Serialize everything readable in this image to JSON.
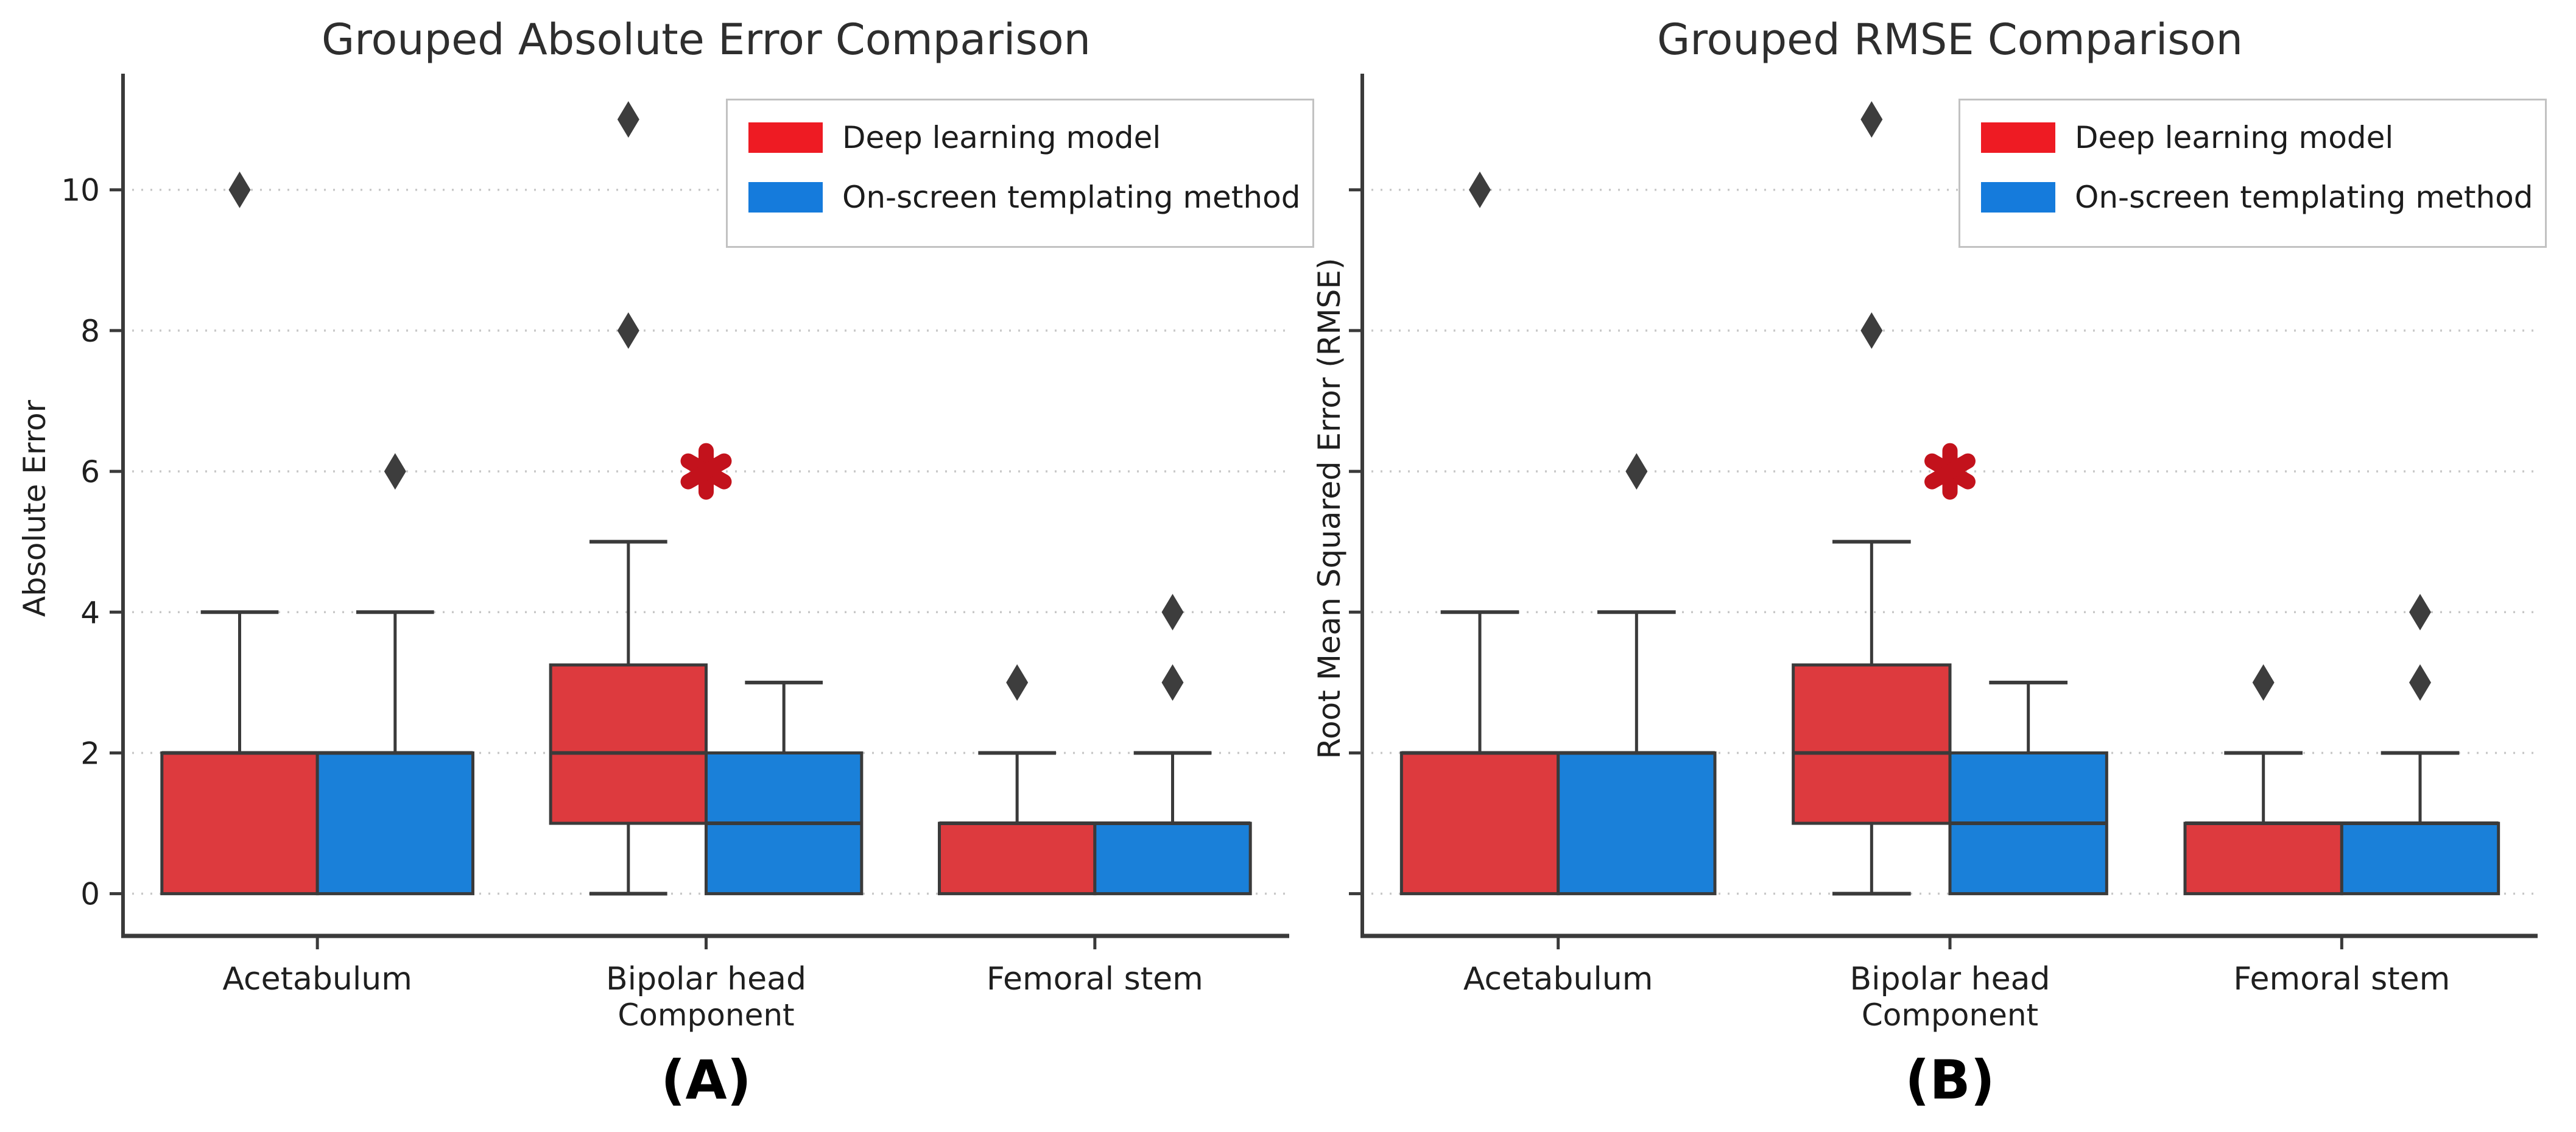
{
  "figure": {
    "background": "#ffffff",
    "text_color": "#1f1f1f",
    "spine_color": "#3a3a3a",
    "grid_color": "#c8c8c8",
    "outlier_color": "#3d3d3d"
  },
  "legend": {
    "items": [
      {
        "label": "Deep learning model",
        "color": "#ee1b23"
      },
      {
        "label": "On-screen templating method",
        "color": "#157bdc"
      }
    ],
    "position": "upper right"
  },
  "chart_data": [
    {
      "type": "boxplot",
      "title": "Grouped Absolute Error Comparison",
      "xlabel": "Component",
      "ylabel": "Absolute Error",
      "caption": "(A)",
      "categories": [
        "Acetabulum",
        "Bipolar head",
        "Femoral stem"
      ],
      "yticks": [
        0,
        2,
        4,
        6,
        8,
        10
      ],
      "ytick_labels_visible": true,
      "ylim": [
        -0.6,
        11.65
      ],
      "grid": "horizontal-dotted",
      "legend_position": "upper right",
      "series": [
        {
          "name": "Deep learning model",
          "box_fill": "#dd3a3e",
          "boxes": [
            {
              "category": "Acetabulum",
              "whisker_low": 0,
              "q1": 0,
              "median": 2,
              "q3": 2,
              "whisker_high": 4,
              "outliers": [
                10
              ]
            },
            {
              "category": "Bipolar head",
              "whisker_low": 0,
              "q1": 1,
              "median": 2,
              "q3": 3.25,
              "whisker_high": 5,
              "outliers": [
                8,
                11
              ]
            },
            {
              "category": "Femoral stem",
              "whisker_low": 0,
              "q1": 0,
              "median": 1,
              "q3": 1,
              "whisker_high": 2,
              "outliers": [
                3
              ]
            }
          ]
        },
        {
          "name": "On-screen templating method",
          "box_fill": "#1a80d9",
          "boxes": [
            {
              "category": "Acetabulum",
              "whisker_low": 0,
              "q1": 0,
              "median": 2,
              "q3": 2,
              "whisker_high": 4,
              "outliers": [
                6
              ]
            },
            {
              "category": "Bipolar head",
              "whisker_low": 0,
              "q1": 0,
              "median": 1,
              "q3": 2,
              "whisker_high": 3,
              "outliers": []
            },
            {
              "category": "Femoral stem",
              "whisker_low": 0,
              "q1": 0,
              "median": 1,
              "q3": 1,
              "whisker_high": 2,
              "outliers": [
                3,
                4
              ]
            }
          ]
        }
      ],
      "significance_marker": {
        "symbol": "*",
        "category": "Bipolar head",
        "y": 6,
        "color": "#c3121c"
      }
    },
    {
      "type": "boxplot",
      "title": "Grouped RMSE Comparison",
      "xlabel": "Component",
      "ylabel": "Root Mean Squared Error (RMSE)",
      "caption": "(B)",
      "categories": [
        "Acetabulum",
        "Bipolar head",
        "Femoral stem"
      ],
      "yticks": [
        0,
        2,
        4,
        6,
        8,
        10
      ],
      "ytick_labels_visible": false,
      "ylim": [
        -0.6,
        11.65
      ],
      "grid": "horizontal-dotted",
      "legend_position": "upper right",
      "series": [
        {
          "name": "Deep learning model",
          "box_fill": "#dd3a3e",
          "boxes": [
            {
              "category": "Acetabulum",
              "whisker_low": 0,
              "q1": 0,
              "median": 2,
              "q3": 2,
              "whisker_high": 4,
              "outliers": [
                10
              ]
            },
            {
              "category": "Bipolar head",
              "whisker_low": 0,
              "q1": 1,
              "median": 2,
              "q3": 3.25,
              "whisker_high": 5,
              "outliers": [
                8,
                11
              ]
            },
            {
              "category": "Femoral stem",
              "whisker_low": 0,
              "q1": 0,
              "median": 1,
              "q3": 1,
              "whisker_high": 2,
              "outliers": [
                3
              ]
            }
          ]
        },
        {
          "name": "On-screen templating method",
          "box_fill": "#1a80d9",
          "boxes": [
            {
              "category": "Acetabulum",
              "whisker_low": 0,
              "q1": 0,
              "median": 2,
              "q3": 2,
              "whisker_high": 4,
              "outliers": [
                6
              ]
            },
            {
              "category": "Bipolar head",
              "whisker_low": 0,
              "q1": 0,
              "median": 1,
              "q3": 2,
              "whisker_high": 3,
              "outliers": []
            },
            {
              "category": "Femoral stem",
              "whisker_low": 0,
              "q1": 0,
              "median": 1,
              "q3": 1,
              "whisker_high": 2,
              "outliers": [
                3,
                4
              ]
            }
          ]
        }
      ],
      "significance_marker": {
        "symbol": "*",
        "category": "Bipolar head",
        "y": 6,
        "color": "#c3121c"
      }
    }
  ]
}
